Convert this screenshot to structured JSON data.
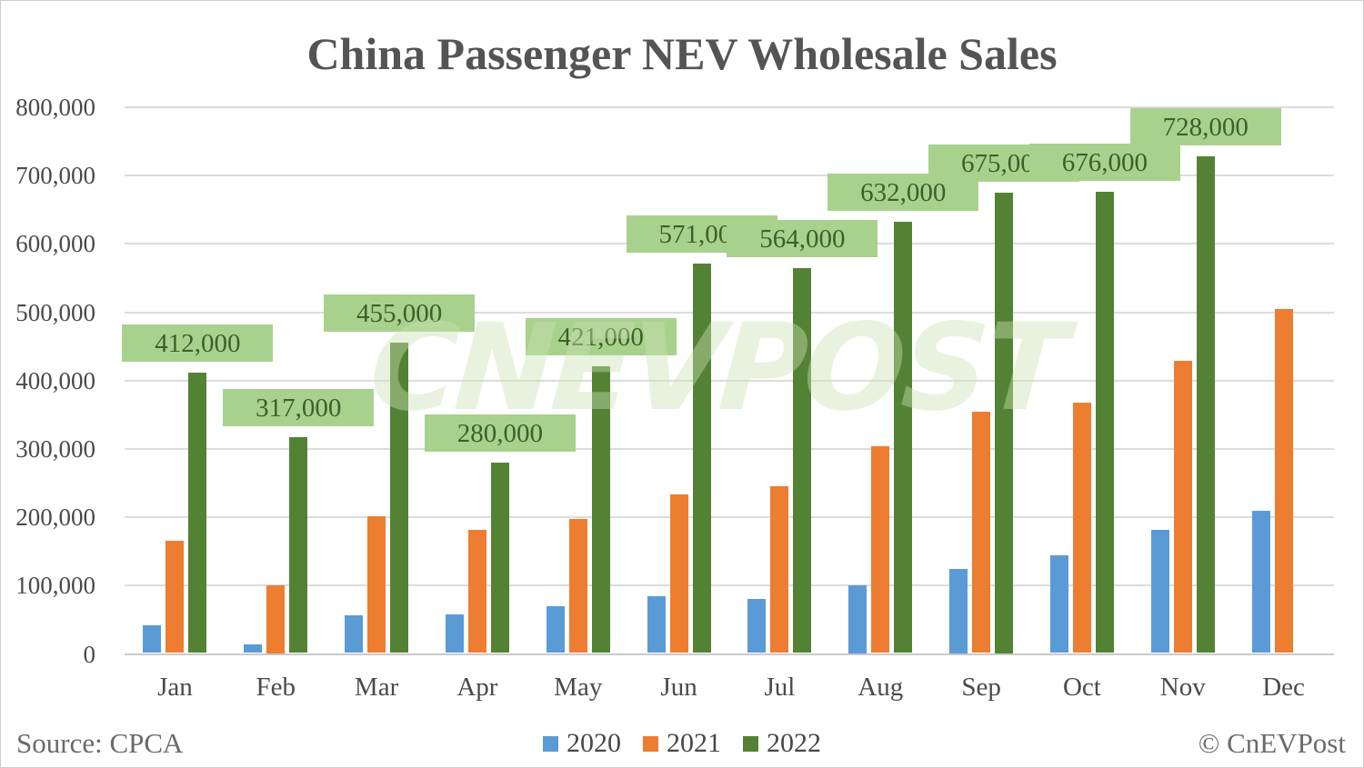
{
  "title": "China Passenger NEV Wholesale Sales",
  "source_note": "Source: CPCA",
  "copyright": "© CnEVPost",
  "watermark_text": "CNEVPOST",
  "colors": {
    "series_2020": "#5b9bd5",
    "series_2021": "#ed7d31",
    "series_2022": "#548235",
    "data_label_bg": "#a9d18e",
    "data_label_text": "#3e6028",
    "watermark": "#cbe2b2",
    "grid": "#dcdcdc",
    "axis_text": "#4a4a4a",
    "title_text": "#545454",
    "footer_text": "#6a6a6a"
  },
  "chart_data": {
    "type": "bar",
    "title": "China Passenger NEV Wholesale Sales",
    "categories": [
      "Jan",
      "Feb",
      "Mar",
      "Apr",
      "May",
      "Jun",
      "Jul",
      "Aug",
      "Sep",
      "Oct",
      "Nov",
      "Dec"
    ],
    "series": [
      {
        "name": "2020",
        "color": "#5b9bd5",
        "values": [
          42000,
          14000,
          56000,
          58000,
          70000,
          85000,
          81000,
          100000,
          125000,
          144000,
          181000,
          210000
        ]
      },
      {
        "name": "2021",
        "color": "#ed7d31",
        "values": [
          165000,
          100000,
          201000,
          182000,
          197000,
          234000,
          245000,
          304000,
          355000,
          368000,
          429000,
          505000
        ]
      },
      {
        "name": "2022",
        "color": "#548235",
        "values": [
          412000,
          317000,
          455000,
          280000,
          421000,
          571000,
          564000,
          632000,
          675000,
          676000,
          728000,
          null
        ],
        "data_labels": [
          "412,000",
          "317,000",
          "455,000",
          "280,000",
          "421,000",
          "571,000",
          "564,000",
          "632,000",
          "675,000",
          "676,000",
          "728,000",
          null
        ]
      }
    ],
    "xlabel": "",
    "ylabel": "",
    "ylim": [
      0,
      800000
    ],
    "ytick_step": 100000,
    "grid": true,
    "legend_position": "bottom"
  }
}
